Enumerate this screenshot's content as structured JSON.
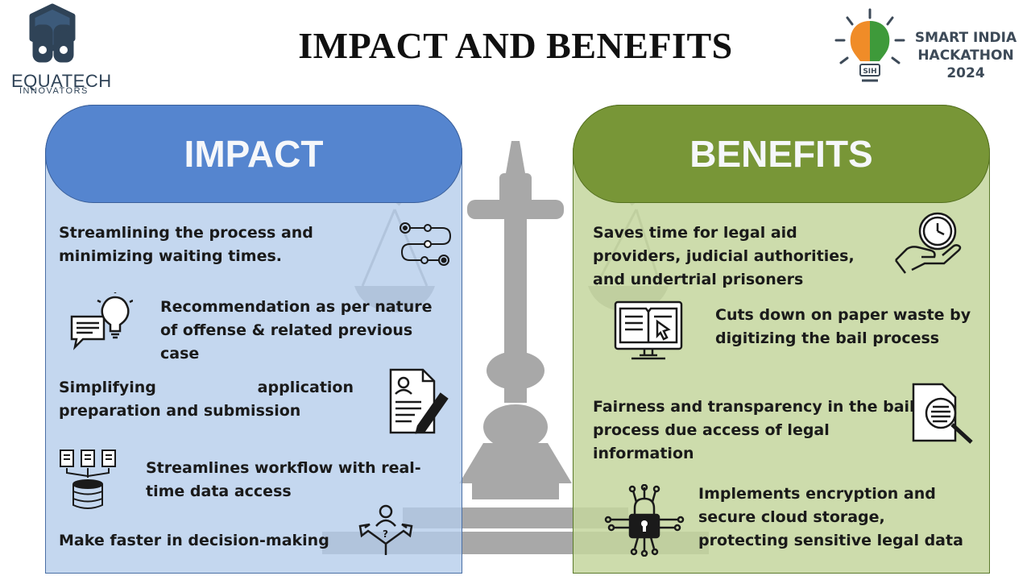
{
  "header": {
    "title": "IMPACT AND BENEFITS",
    "team_logo": {
      "name": "EQUATECH",
      "tagline": "INNOVATORS"
    },
    "event_logo": {
      "line1": "SMART INDIA",
      "line2": "HACKATHON",
      "line3": "2024",
      "badge": "SIH"
    }
  },
  "impact": {
    "heading": "IMPACT",
    "items": [
      {
        "text": "Streamlining the process and minimizing waiting times.",
        "icon": "workflow-path-icon"
      },
      {
        "text": "Recommendation as per nature of offense & related previous case",
        "icon": "idea-bulb-chat-icon"
      },
      {
        "text": "Simplifying application preparation and submission",
        "icon": "document-edit-icon"
      },
      {
        "text": "Streamlines workflow with real-time data access",
        "icon": "documents-to-database-icon"
      },
      {
        "text": "Make faster in decision-making",
        "icon": "decision-person-icon"
      }
    ]
  },
  "benefits": {
    "heading": "BENEFITS",
    "items": [
      {
        "text": "Saves time for legal aid providers, judicial authorities, and undertrial prisoners",
        "icon": "clock-hand-icon"
      },
      {
        "text": "Cuts down on paper waste by digitizing the bail process",
        "icon": "digital-book-monitor-icon"
      },
      {
        "text": "Fairness and transparency in the bail process due access of legal information",
        "icon": "document-search-icon"
      },
      {
        "text": "Implements encryption and secure cloud storage, protecting sensitive legal data",
        "icon": "lock-circuit-icon"
      }
    ]
  },
  "colors": {
    "impact_header": "#5585cf",
    "impact_panel": "#b4ccea",
    "benefits_header": "#789637",
    "benefits_panel": "#c4d69e"
  }
}
